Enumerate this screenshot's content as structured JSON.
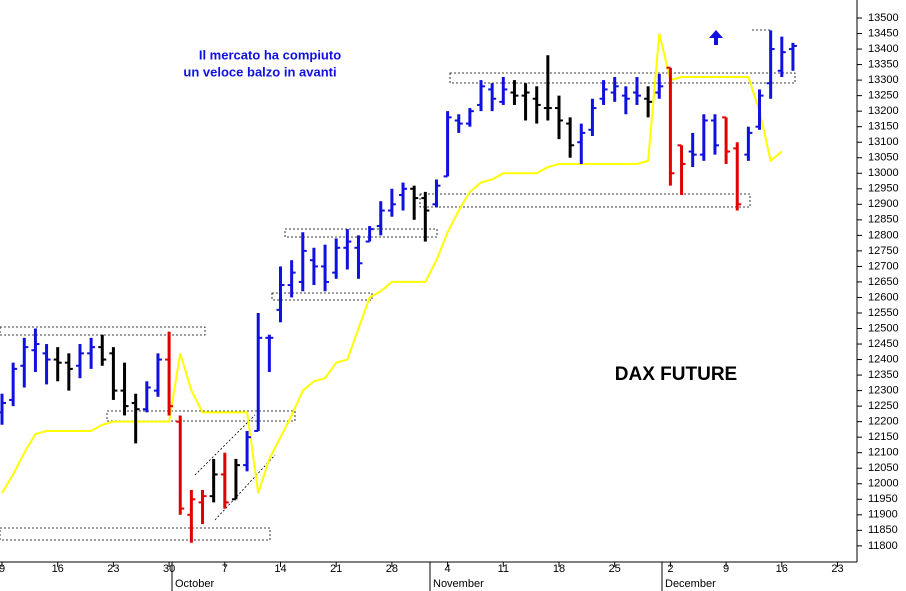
{
  "chart_data": {
    "type": "ohlc",
    "title": "DAX FUTURE",
    "annotation": [
      "Il mercato ha compiuto",
      "un veloce balzo in avanti"
    ],
    "categories": [
      "9",
      null,
      null,
      null,
      null,
      "16",
      null,
      null,
      null,
      null,
      "23",
      null,
      null,
      null,
      null,
      "30",
      null,
      null,
      null,
      null,
      "7",
      null,
      null,
      null,
      null,
      "14",
      null,
      null,
      null,
      null,
      "21",
      null,
      null,
      null,
      null,
      "28",
      null,
      null,
      null,
      null,
      "4",
      null,
      null,
      null,
      null,
      "11",
      null,
      null,
      null,
      null,
      "18",
      null,
      null,
      null,
      null,
      "25",
      null,
      null,
      null,
      null,
      "2",
      null,
      null,
      null,
      null,
      "9",
      null,
      null,
      null,
      null,
      "16",
      null,
      null,
      null,
      null,
      "23",
      null,
      null,
      null,
      null
    ],
    "months": [
      "October",
      "November",
      "December"
    ],
    "open": [
      12230,
      12270,
      12380,
      12430,
      12420,
      12400,
      12390,
      12380,
      12420,
      12440,
      12420,
      12300,
      12260,
      12240,
      12300,
      12400,
      12200,
      11900,
      11940,
      11960,
      12030,
      11950,
      12060,
      12170,
      12470,
      12560,
      12640,
      12650,
      12720,
      12700,
      12680,
      12760,
      12760,
      12780,
      12830,
      12880,
      12930,
      12950,
      12920,
      12900,
      12990,
      13170,
      13160,
      13220,
      13270,
      13230,
      13260,
      13250,
      13240,
      13210,
      13210,
      13160,
      13100,
      13140,
      13240,
      13260,
      13250,
      13260,
      13240,
      13260,
      13340,
      13090,
      13070,
      13060,
      13170,
      13180,
      13080,
      13060,
      13150,
      13290,
      13330,
      13400,
      null,
      null,
      null,
      null,
      null,
      null,
      null,
      null
    ],
    "high": [
      12290,
      12390,
      12470,
      12500,
      12450,
      12440,
      12420,
      12450,
      12470,
      12480,
      12440,
      12390,
      12290,
      12330,
      12420,
      12490,
      12220,
      11980,
      11980,
      12080,
      12100,
      12080,
      12170,
      12550,
      12480,
      12700,
      12720,
      12810,
      12760,
      12770,
      12790,
      12820,
      12800,
      12830,
      12910,
      12950,
      12970,
      12960,
      12940,
      12980,
      13200,
      13190,
      13210,
      13300,
      13290,
      13310,
      13300,
      13290,
      13280,
      13380,
      13250,
      13180,
      13160,
      13240,
      13300,
      13310,
      13280,
      13310,
      13280,
      13320,
      13340,
      13090,
      13130,
      13190,
      13190,
      13180,
      13100,
      13150,
      13270,
      13460,
      13440,
      13420,
      null,
      null,
      null,
      null,
      null,
      null,
      null,
      null
    ],
    "low": [
      12190,
      12250,
      12310,
      12360,
      12320,
      12330,
      12300,
      12340,
      12370,
      12380,
      12270,
      12220,
      12130,
      12230,
      12280,
      12220,
      11900,
      11810,
      11870,
      11940,
      11920,
      11950,
      12040,
      12170,
      12360,
      12520,
      12600,
      12620,
      12640,
      12620,
      12660,
      12690,
      12660,
      12780,
      12800,
      12860,
      12880,
      12850,
      12780,
      12890,
      12990,
      13130,
      13150,
      13200,
      13200,
      13220,
      13220,
      13170,
      13160,
      13170,
      13110,
      13050,
      13030,
      13120,
      13220,
      13230,
      13190,
      13220,
      13180,
      13240,
      12960,
      12930,
      13020,
      13040,
      13060,
      13030,
      12880,
      13040,
      13140,
      13240,
      13310,
      13330,
      null,
      null,
      null,
      null,
      null,
      null,
      null,
      null
    ],
    "close": [
      12260,
      12370,
      12440,
      12450,
      12400,
      12390,
      12370,
      12420,
      12440,
      12400,
      12300,
      12250,
      12240,
      12310,
      12400,
      12250,
      11920,
      11950,
      11960,
      12030,
      11940,
      12060,
      12150,
      12470,
      12470,
      12640,
      12680,
      12750,
      12700,
      12650,
      12760,
      12780,
      12710,
      12820,
      12880,
      12900,
      12950,
      12920,
      12880,
      12960,
      13180,
      13160,
      13200,
      13280,
      13240,
      13270,
      13250,
      13260,
      13220,
      13210,
      13170,
      13090,
      13130,
      13210,
      13270,
      13280,
      13240,
      13250,
      13230,
      13280,
      13000,
      13030,
      13060,
      13170,
      13090,
      13070,
      12900,
      13130,
      13250,
      13400,
      13390,
      13410,
      null,
      null,
      null,
      null,
      null,
      null,
      null,
      null
    ],
    "bar_colors": [
      "#1010e0",
      "#1010e0",
      "#1010e0",
      "#1010e0",
      "#1010e0",
      "#000",
      "#000",
      "#1010e0",
      "#1010e0",
      "#000",
      "#000",
      "#000",
      "#000",
      "#1010e0",
      "#1010e0",
      "#e00000",
      "#e00000",
      "#e00000",
      "#e00000",
      "#000",
      "#e00000",
      "#000",
      "#1010e0",
      "#1010e0",
      "#1010e0",
      "#1010e0",
      "#1010e0",
      "#1010e0",
      "#1010e0",
      "#1010e0",
      "#1010e0",
      "#1010e0",
      "#1010e0",
      "#1010e0",
      "#1010e0",
      "#1010e0",
      "#1010e0",
      "#000",
      "#000",
      "#1010e0",
      "#1010e0",
      "#1010e0",
      "#1010e0",
      "#1010e0",
      "#1010e0",
      "#1010e0",
      "#000",
      "#000",
      "#000",
      "#000",
      "#000",
      "#000",
      "#1010e0",
      "#1010e0",
      "#1010e0",
      "#1010e0",
      "#1010e0",
      "#1010e0",
      "#000",
      "#1010e0",
      "#e00000",
      "#e00000",
      "#1010e0",
      "#1010e0",
      "#1010e0",
      "#e00000",
      "#e00000",
      "#1010e0",
      "#1010e0",
      "#1010e0",
      "#1010e0",
      "#1010e0",
      null,
      null,
      null,
      null,
      null,
      null,
      null,
      null
    ],
    "line": {
      "color": "#ffff00",
      "values": [
        11970,
        12030,
        12100,
        12160,
        12170,
        12170,
        12170,
        12170,
        12170,
        12190,
        12200,
        12200,
        12200,
        12200,
        12200,
        12200,
        12420,
        12300,
        12230,
        12230,
        12230,
        12230,
        12230,
        11970,
        12080,
        12150,
        12220,
        12300,
        12330,
        12340,
        12390,
        12400,
        12500,
        12600,
        12620,
        12650,
        12650,
        12650,
        12650,
        12720,
        12810,
        12880,
        12940,
        12970,
        12980,
        13000,
        13000,
        13000,
        13000,
        13020,
        13030,
        13030,
        13030,
        13030,
        13030,
        13030,
        13030,
        13030,
        13040,
        13450,
        13300,
        13310,
        13310,
        13310,
        13310,
        13310,
        13310,
        13310,
        13200,
        13040,
        13070,
        null,
        null,
        null,
        null,
        null,
        null,
        null,
        null,
        null
      ]
    },
    "ylim": [
      11748,
      13558
    ],
    "yticks": [
      11800,
      11850,
      11900,
      11950,
      12000,
      12050,
      12100,
      12150,
      12200,
      12250,
      12300,
      12350,
      12400,
      12450,
      12500,
      12550,
      12600,
      12650,
      12700,
      12750,
      12800,
      12850,
      12900,
      12950,
      13000,
      13050,
      13100,
      13150,
      13200,
      13250,
      13300,
      13350,
      13400,
      13450,
      13500
    ]
  }
}
